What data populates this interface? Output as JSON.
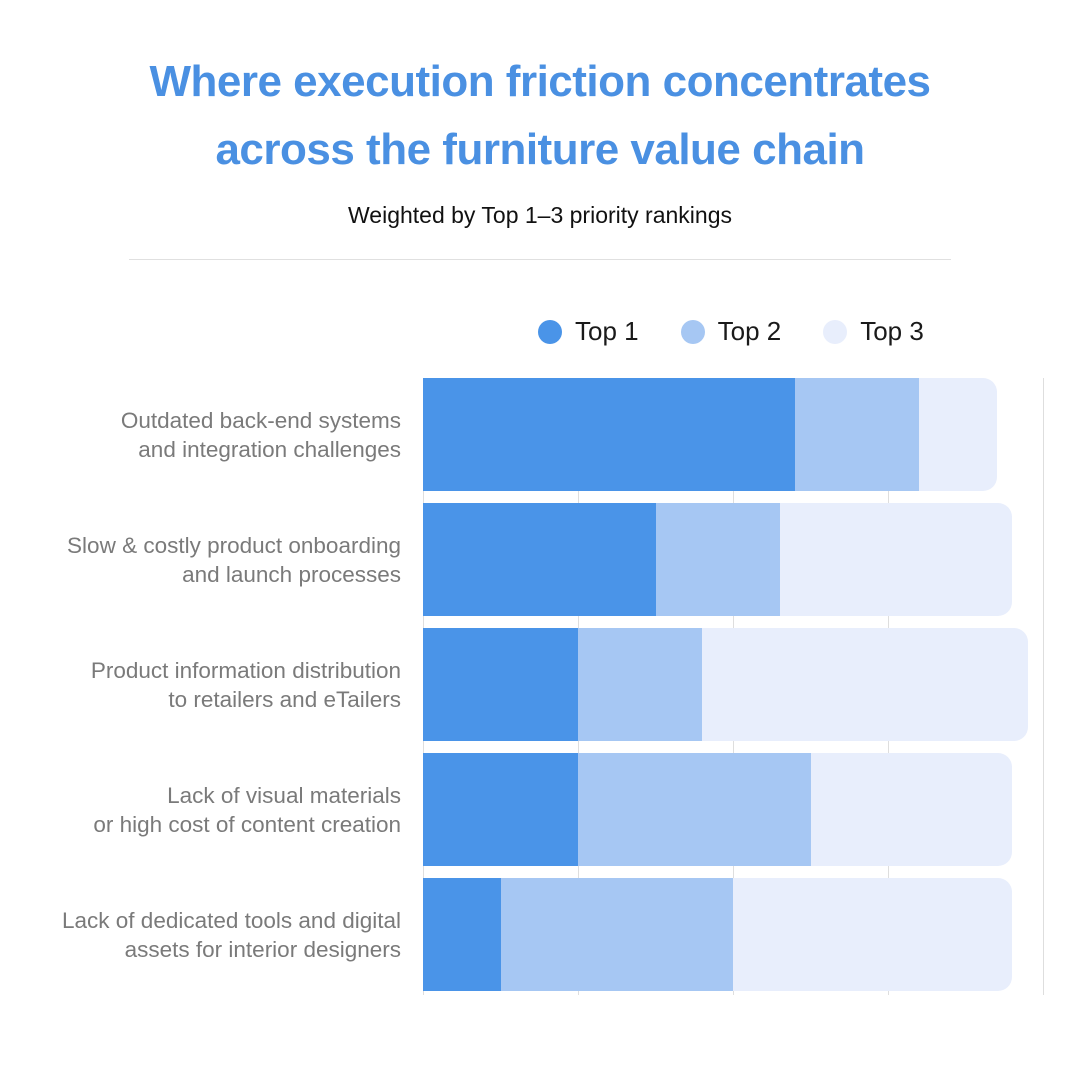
{
  "title_lines": [
    "Where execution friction concentrates",
    "across the furniture value chain"
  ],
  "subtitle": "Weighted by Top 1–3 priority rankings",
  "colors": {
    "title": "#4a90e2",
    "top1": "#4a94e8",
    "top2": "#a6c7f3",
    "top3": "#e8eefc",
    "category_label": "#7a7a7a",
    "legend_text": "#1a1a1a",
    "gridline": "#dedede",
    "divider": "#e0e0e0",
    "background": "#ffffff"
  },
  "legend": {
    "items": [
      {
        "label": "Top 1",
        "color": "#4a94e8"
      },
      {
        "label": "Top 2",
        "color": "#a6c7f3"
      },
      {
        "label": "Top 3",
        "color": "#e8eefc"
      }
    ]
  },
  "chart_data": {
    "type": "bar",
    "orientation": "horizontal",
    "stacked": true,
    "title": "Where execution friction concentrates across the furniture value chain",
    "subtitle": "Weighted by Top 1–3 priority rankings",
    "categories": [
      "Outdated back-end systems and integration challenges",
      "Slow & costly product onboarding and launch processes",
      "Product information distribution to retailers and eTailers",
      "Lack of visual materials or high cost of content creation",
      "Lack of dedicated tools and digital assets for interior designers"
    ],
    "label_lines": [
      [
        "Outdated back-end systems",
        "and integration challenges"
      ],
      [
        "Slow & costly product onboarding",
        "and launch processes"
      ],
      [
        "Product information distribution",
        "to retailers and eTailers"
      ],
      [
        "Lack of visual materials",
        "or high cost of content creation"
      ],
      [
        "Lack of dedicated tools and digital",
        "assets for interior designers"
      ]
    ],
    "series": [
      {
        "name": "Top 1",
        "color": "#4a94e8",
        "values": [
          24,
          15,
          10,
          10,
          5
        ]
      },
      {
        "name": "Top 2",
        "color": "#a6c7f3",
        "values": [
          8,
          8,
          8,
          15,
          15
        ]
      },
      {
        "name": "Top 3",
        "color": "#e8eefc",
        "values": [
          5,
          15,
          21,
          13,
          18
        ]
      }
    ],
    "totals": [
      37,
      38,
      39,
      38,
      38
    ],
    "xlabel": "",
    "ylabel": "",
    "xlim": [
      0,
      40
    ],
    "gridlines": [
      0,
      10,
      20,
      30,
      40
    ],
    "grid": true,
    "x_tick_labels_visible": false,
    "legend_position": "top-right"
  }
}
